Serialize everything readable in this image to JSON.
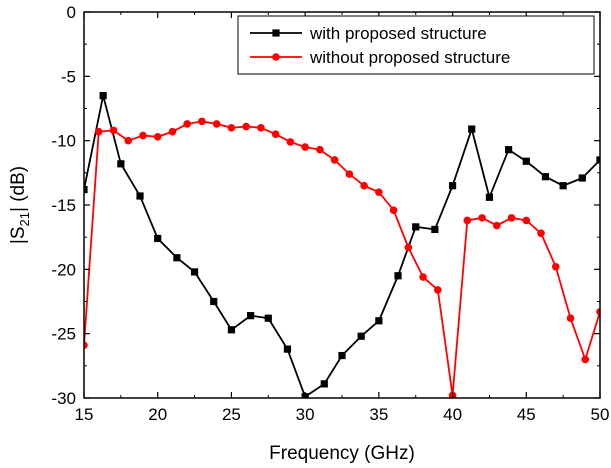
{
  "chart_data": {
    "type": "line",
    "xlabel": "Frequency (GHz)",
    "ylabel": {
      "pre": "|S",
      "sub": "21",
      "post": "| (dB)"
    },
    "xlim": [
      15,
      50
    ],
    "ylim": [
      -30,
      0
    ],
    "xticks": [
      15,
      20,
      25,
      30,
      35,
      40,
      45,
      50
    ],
    "yticks": [
      0,
      -5,
      -10,
      -15,
      -20,
      -25,
      -30
    ],
    "grid": false,
    "legend_position": "top-right",
    "series": [
      {
        "name": "with proposed structure",
        "color": "#000000",
        "marker": "square",
        "x": [
          15,
          16.3,
          17.5,
          18.8,
          20,
          21.3,
          22.5,
          23.8,
          25,
          26.3,
          27.5,
          28.8,
          30,
          31.3,
          32.5,
          33.8,
          35,
          36.3,
          37.5,
          38.8,
          40,
          41.3,
          42.5,
          43.8,
          45,
          46.3,
          47.5,
          48.8,
          50
        ],
        "y": [
          -13.8,
          -6.5,
          -11.8,
          -14.3,
          -17.6,
          -19.1,
          -20.2,
          -22.5,
          -24.7,
          -23.6,
          -23.8,
          -26.2,
          -29.9,
          -28.9,
          -26.7,
          -25.2,
          -24.0,
          -20.5,
          -16.7,
          -16.9,
          -13.5,
          -9.1,
          -14.4,
          -10.7,
          -11.6,
          -12.8,
          -13.5,
          -12.9,
          -11.5
        ]
      },
      {
        "name": "without proposed structure",
        "color": "#ff0000",
        "marker": "circle",
        "x": [
          15,
          16,
          17,
          18,
          19,
          20,
          21,
          22,
          23,
          24,
          25,
          26,
          27,
          28,
          29,
          30,
          31,
          32,
          33,
          34,
          35,
          36,
          37,
          38,
          39,
          40,
          41,
          42,
          43,
          44,
          45,
          46,
          47,
          48,
          49,
          50
        ],
        "y": [
          -25.9,
          -9.3,
          -9.2,
          -10.0,
          -9.6,
          -9.7,
          -9.3,
          -8.7,
          -8.5,
          -8.7,
          -9.0,
          -8.9,
          -9.0,
          -9.5,
          -10.1,
          -10.5,
          -10.7,
          -11.5,
          -12.6,
          -13.5,
          -14.0,
          -15.4,
          -18.3,
          -20.6,
          -21.6,
          -29.8,
          -16.2,
          -16.0,
          -16.6,
          -16.0,
          -16.2,
          -17.2,
          -19.8,
          -23.8,
          -27.0,
          -23.3
        ]
      }
    ]
  }
}
